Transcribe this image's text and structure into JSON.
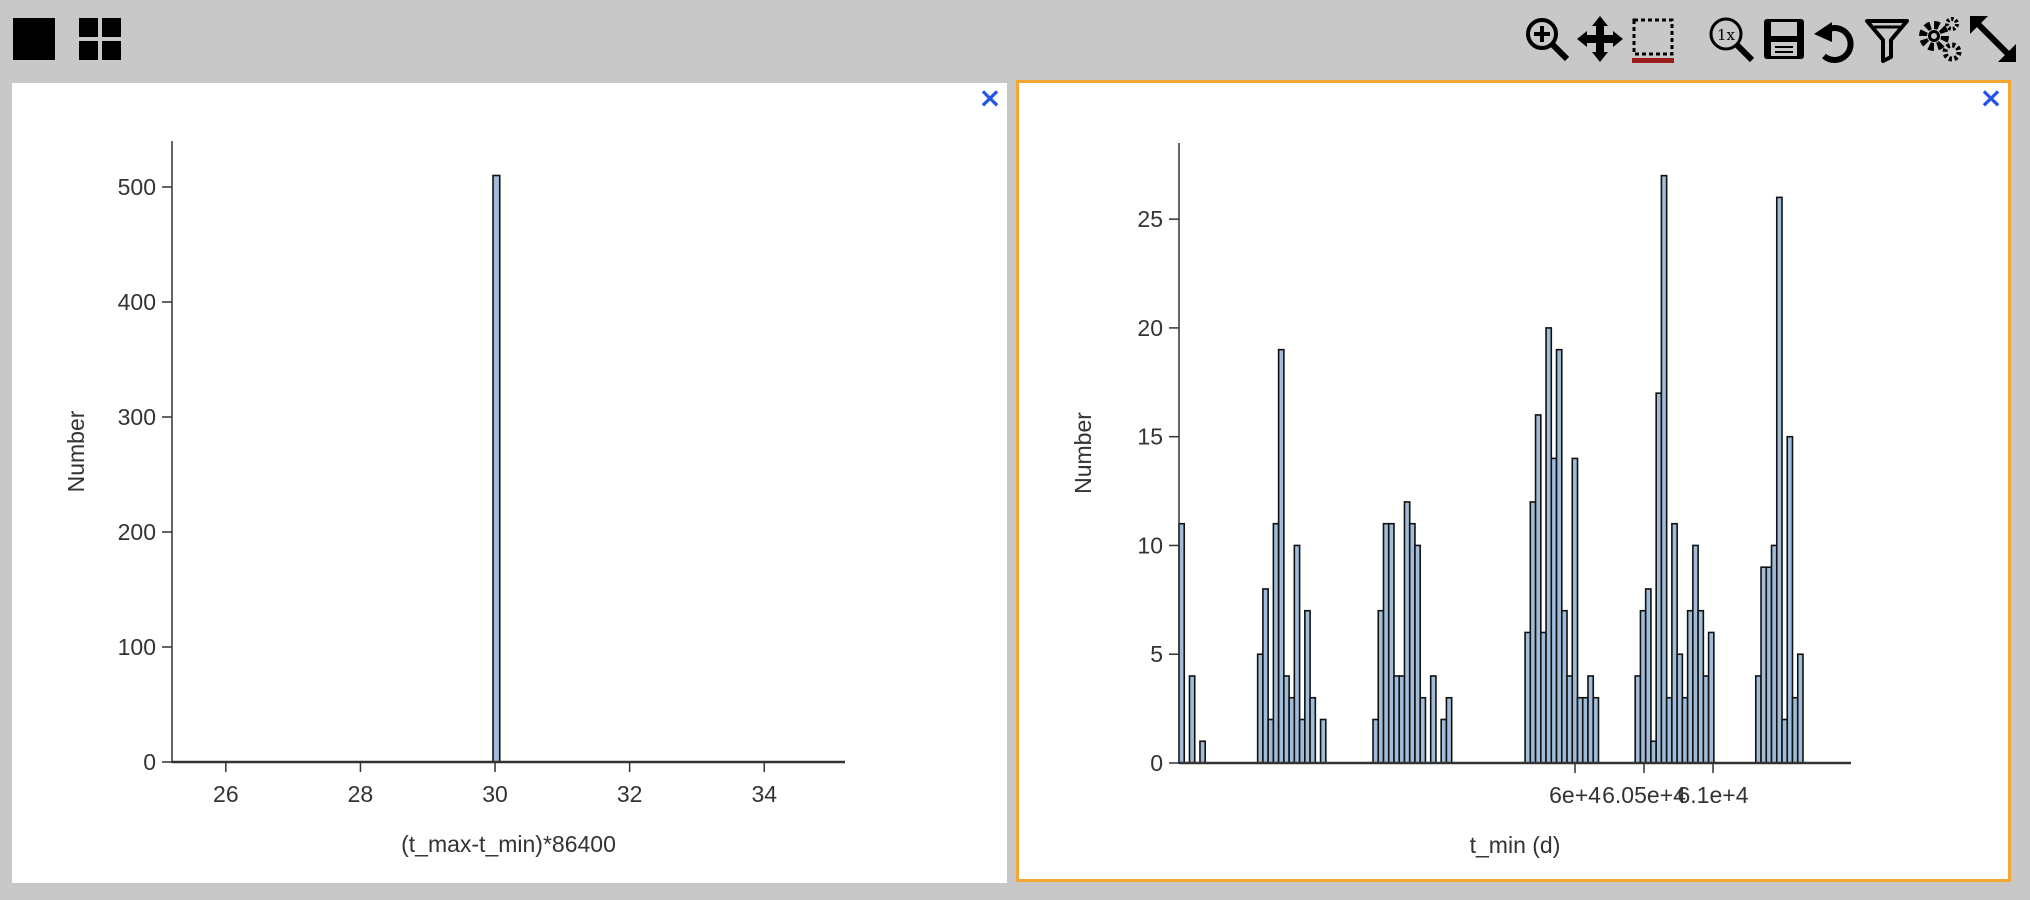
{
  "toolbar": {
    "left_icons": [
      "single-view-icon",
      "grid-view-icon"
    ],
    "right_icons": [
      "zoom-in-icon",
      "pan-icon",
      "box-select-icon",
      "zoom-reset-icon",
      "save-icon",
      "undo-icon",
      "filter-icon",
      "settings-icon",
      "expand-icon"
    ]
  },
  "colors": {
    "accent": "#f4a732",
    "bar_fill": "#a0bcd8",
    "bar_stroke": "#111111",
    "close": "#2255ee",
    "active_underline": "#9b1c1c"
  },
  "panels": [
    {
      "close_label": "×"
    },
    {
      "close_label": "×"
    }
  ],
  "chart_data": [
    {
      "type": "bar",
      "xlabel": "(t_max-t_min)*86400",
      "ylabel": "Number",
      "xlim": [
        25.2,
        35.2
      ],
      "ylim": [
        0,
        540
      ],
      "xticks": [
        26,
        28,
        30,
        32,
        34
      ],
      "xtick_labels": [
        "26",
        "28",
        "30",
        "32",
        "34"
      ],
      "yticks": [
        0,
        100,
        200,
        300,
        400,
        500
      ],
      "ytick_labels": [
        "0",
        "100",
        "200",
        "300",
        "400",
        "500"
      ],
      "bin_width": 0.1,
      "bins": [
        {
          "x0": 29.97,
          "x1": 30.07,
          "value": 510
        }
      ]
    },
    {
      "type": "bar",
      "xlabel": "t_min (d)",
      "ylabel": "Number",
      "xlim": [
        59713,
        60200
      ],
      "ylim": [
        0,
        28.5
      ],
      "xticks": [
        60000,
        60050,
        60100
      ],
      "xtick_labels": [
        "6e+4",
        "6.05e+4",
        "6.1e+4"
      ],
      "yticks": [
        0,
        5,
        10,
        15,
        20,
        25
      ],
      "ytick_labels": [
        "0",
        "5",
        "10",
        "15",
        "20",
        "25"
      ],
      "x_start": 59713,
      "bin_width": 3.8,
      "values": [
        11,
        0,
        4,
        0,
        1,
        0,
        0,
        0,
        0,
        0,
        0,
        0,
        0,
        0,
        0,
        5,
        8,
        2,
        11,
        19,
        4,
        3,
        10,
        2,
        7,
        3,
        0,
        2,
        0,
        0,
        0,
        0,
        0,
        0,
        0,
        0,
        0,
        2,
        7,
        11,
        11,
        4,
        4,
        12,
        11,
        10,
        3,
        0,
        4,
        0,
        2,
        3,
        0,
        0,
        0,
        0,
        0,
        0,
        0,
        0,
        0,
        0,
        0,
        0,
        0,
        0,
        6,
        12,
        16,
        6,
        20,
        14,
        19,
        7,
        4,
        14,
        3,
        3,
        4,
        3,
        0,
        0,
        0,
        0,
        0,
        0,
        0,
        4,
        7,
        8,
        1,
        17,
        27,
        3,
        11,
        5,
        3,
        7,
        10,
        7,
        4,
        6,
        0,
        0,
        0,
        0,
        0,
        0,
        0,
        0,
        4,
        9,
        9,
        10,
        26,
        2,
        15,
        3,
        5
      ]
    }
  ]
}
